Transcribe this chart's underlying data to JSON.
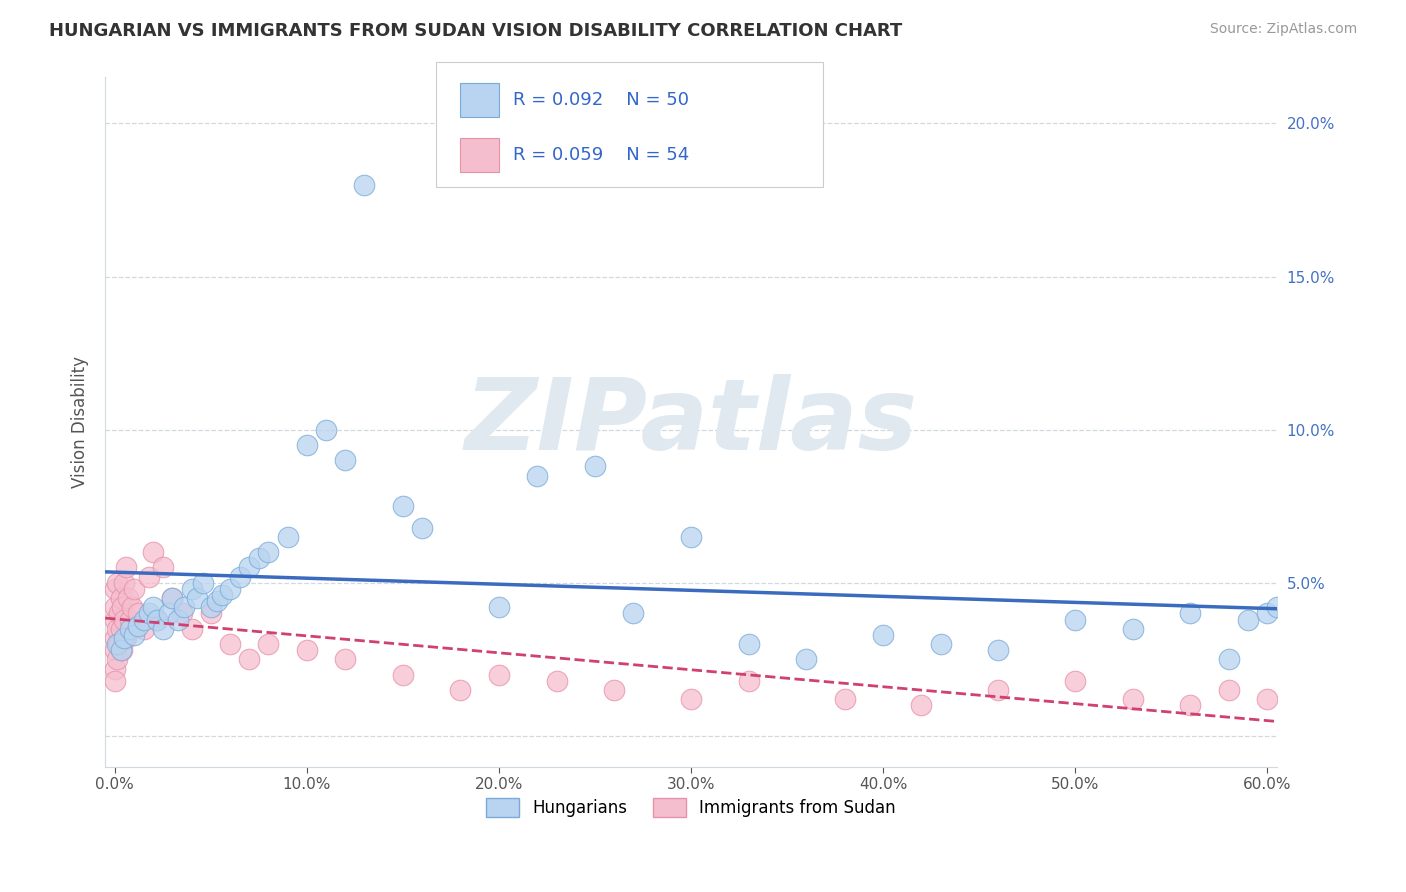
{
  "title": "HUNGARIAN VS IMMIGRANTS FROM SUDAN VISION DISABILITY CORRELATION CHART",
  "source": "Source: ZipAtlas.com",
  "xlabel": "",
  "ylabel": "Vision Disability",
  "xlim": [
    -0.005,
    0.605
  ],
  "ylim": [
    -0.01,
    0.215
  ],
  "xticks": [
    0.0,
    0.1,
    0.2,
    0.3,
    0.4,
    0.5,
    0.6
  ],
  "xtick_labels": [
    "0.0%",
    "10.0%",
    "20.0%",
    "30.0%",
    "40.0%",
    "50.0%",
    "60.0%"
  ],
  "yticks": [
    0.0,
    0.05,
    0.1,
    0.15,
    0.2
  ],
  "ytick_labels_left": [
    "",
    "",
    "",
    "",
    ""
  ],
  "ytick_labels_right": [
    "",
    "5.0%",
    "10.0%",
    "15.0%",
    "20.0%"
  ],
  "hungarian_color": "#b8d4f0",
  "hungarian_edge": "#7aaad8",
  "sudan_color": "#f5bece",
  "sudan_edge": "#e890a8",
  "trend_hungarian_color": "#3a6bbf",
  "trend_sudan_color": "#d04070",
  "legend_r1": "R = 0.092",
  "legend_n1": "N = 50",
  "legend_r2": "R = 0.059",
  "legend_n2": "N = 54",
  "legend_label1": "Hungarians",
  "legend_label2": "Immigrants from Sudan",
  "hungarian_x": [
    0.001,
    0.003,
    0.005,
    0.008,
    0.01,
    0.012,
    0.015,
    0.018,
    0.02,
    0.022,
    0.025,
    0.028,
    0.03,
    0.033,
    0.036,
    0.04,
    0.043,
    0.046,
    0.05,
    0.053,
    0.056,
    0.06,
    0.065,
    0.07,
    0.075,
    0.08,
    0.09,
    0.1,
    0.11,
    0.12,
    0.13,
    0.15,
    0.16,
    0.2,
    0.22,
    0.25,
    0.27,
    0.3,
    0.33,
    0.36,
    0.4,
    0.43,
    0.46,
    0.5,
    0.53,
    0.56,
    0.58,
    0.59,
    0.6,
    0.605
  ],
  "hungarian_y": [
    0.03,
    0.028,
    0.032,
    0.035,
    0.033,
    0.036,
    0.038,
    0.04,
    0.042,
    0.038,
    0.035,
    0.04,
    0.045,
    0.038,
    0.042,
    0.048,
    0.045,
    0.05,
    0.042,
    0.044,
    0.046,
    0.048,
    0.052,
    0.055,
    0.058,
    0.06,
    0.065,
    0.095,
    0.1,
    0.09,
    0.18,
    0.075,
    0.068,
    0.042,
    0.085,
    0.088,
    0.04,
    0.065,
    0.03,
    0.025,
    0.033,
    0.03,
    0.028,
    0.038,
    0.035,
    0.04,
    0.025,
    0.038,
    0.04,
    0.042
  ],
  "sudan_x": [
    0.0,
    0.0,
    0.0,
    0.0,
    0.0,
    0.0,
    0.0,
    0.001,
    0.001,
    0.001,
    0.002,
    0.002,
    0.003,
    0.003,
    0.004,
    0.004,
    0.005,
    0.005,
    0.006,
    0.006,
    0.007,
    0.008,
    0.009,
    0.01,
    0.012,
    0.015,
    0.018,
    0.02,
    0.022,
    0.025,
    0.03,
    0.035,
    0.04,
    0.05,
    0.06,
    0.07,
    0.08,
    0.1,
    0.12,
    0.15,
    0.18,
    0.2,
    0.23,
    0.26,
    0.3,
    0.33,
    0.38,
    0.42,
    0.46,
    0.5,
    0.53,
    0.56,
    0.58,
    0.6
  ],
  "sudan_y": [
    0.038,
    0.032,
    0.028,
    0.022,
    0.018,
    0.042,
    0.048,
    0.05,
    0.035,
    0.025,
    0.04,
    0.03,
    0.045,
    0.035,
    0.042,
    0.028,
    0.05,
    0.038,
    0.055,
    0.032,
    0.045,
    0.038,
    0.042,
    0.048,
    0.04,
    0.035,
    0.052,
    0.06,
    0.038,
    0.055,
    0.045,
    0.04,
    0.035,
    0.04,
    0.03,
    0.025,
    0.03,
    0.028,
    0.025,
    0.02,
    0.015,
    0.02,
    0.018,
    0.015,
    0.012,
    0.018,
    0.012,
    0.01,
    0.015,
    0.018,
    0.012,
    0.01,
    0.015,
    0.012
  ],
  "watermark_text": "ZIPatlas",
  "watermark_color": "#e0e8f0",
  "grid_color": "#d0d8e0",
  "spine_color": "#d0d8e0"
}
